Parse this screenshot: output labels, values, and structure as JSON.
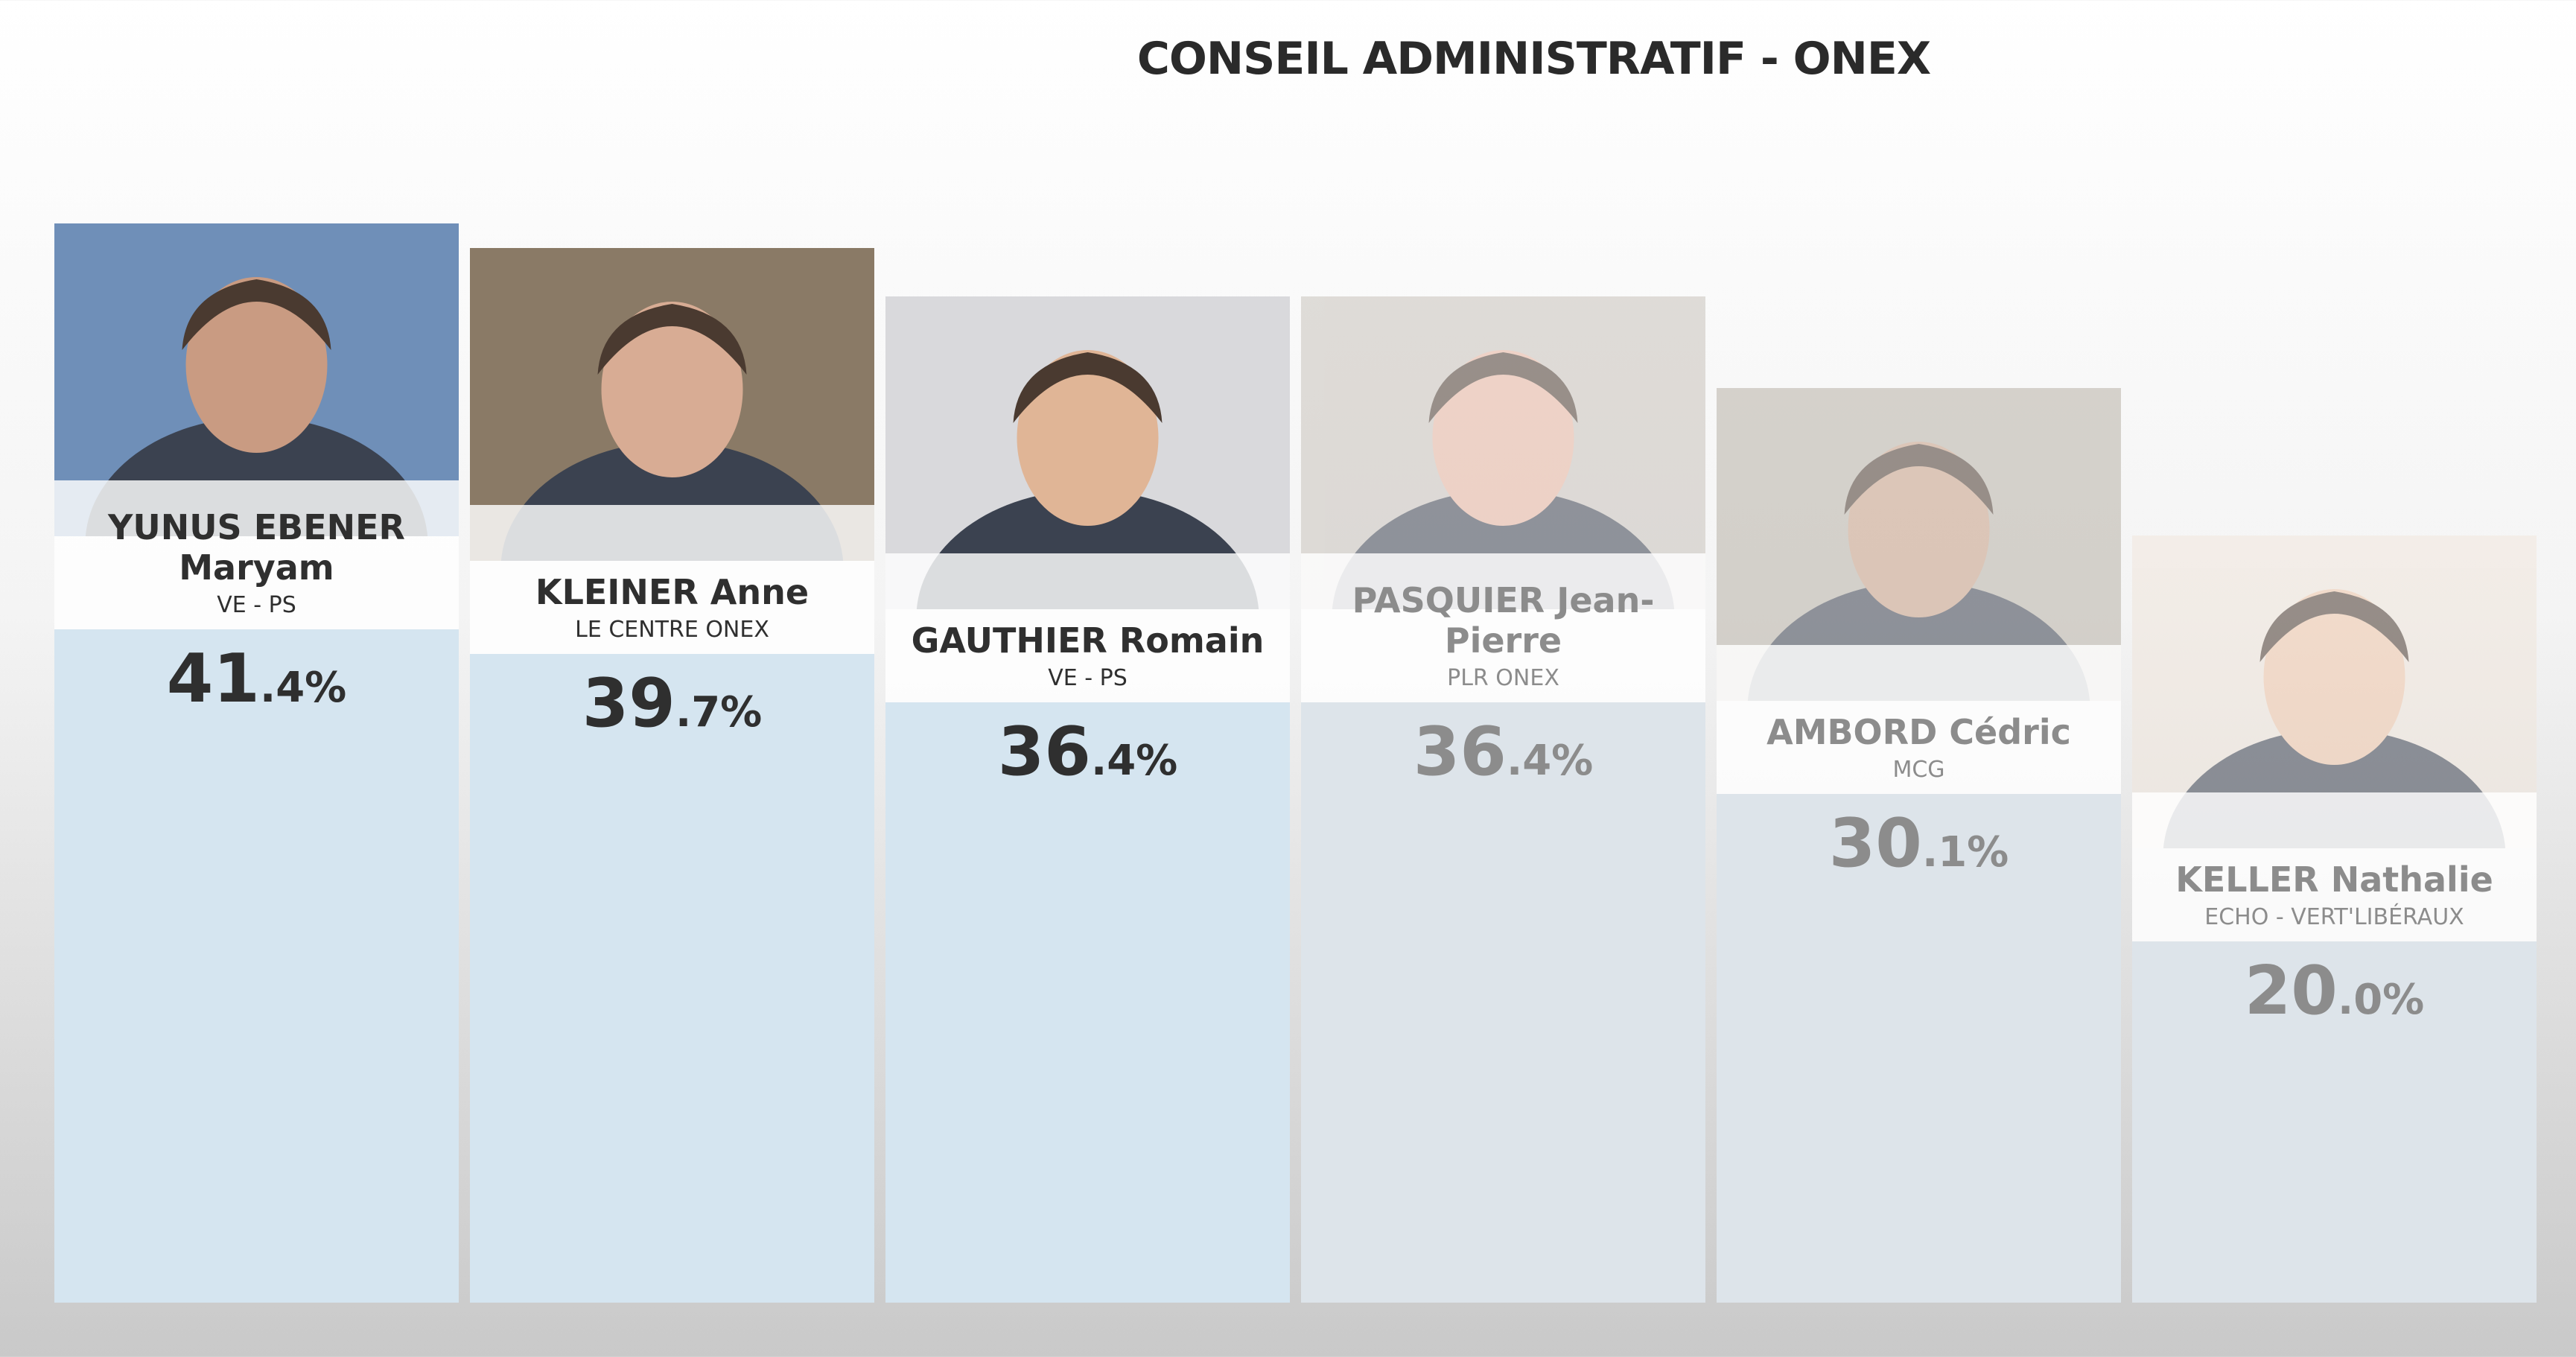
{
  "chart_data": {
    "type": "bar",
    "title": "CONSEIL ADMINISTRATIF - ONEX",
    "categories": [
      "YUNUS EBENER Maryam",
      "KLEINER Anne",
      "GAUTHIER Romain",
      "PASQUIER Jean-Pierre",
      "AMBORD Cédric",
      "KELLER Nathalie"
    ],
    "parties": [
      "VE - PS",
      "LE CENTRE ONEX",
      "VE - PS",
      "PLR ONEX",
      "MCG",
      "ECHO - VERT'LIBÉRAUX"
    ],
    "values": [
      41.4,
      39.7,
      36.4,
      36.4,
      30.1,
      20.0
    ],
    "value_labels": [
      "41.4%",
      "39.7%",
      "36.4%",
      "36.4%",
      "30.1%",
      "20.0%"
    ],
    "colors": [
      "#d5e5f0",
      "#d5e5f0",
      "#d5e5f0",
      "#dde4ea",
      "#dde4ea",
      "#dde4ea"
    ],
    "label_colors": [
      "#2f2f2f",
      "#2f2f2f",
      "#2f2f2f",
      "#8c8c8c",
      "#8c8c8c",
      "#8c8c8c"
    ]
  }
}
